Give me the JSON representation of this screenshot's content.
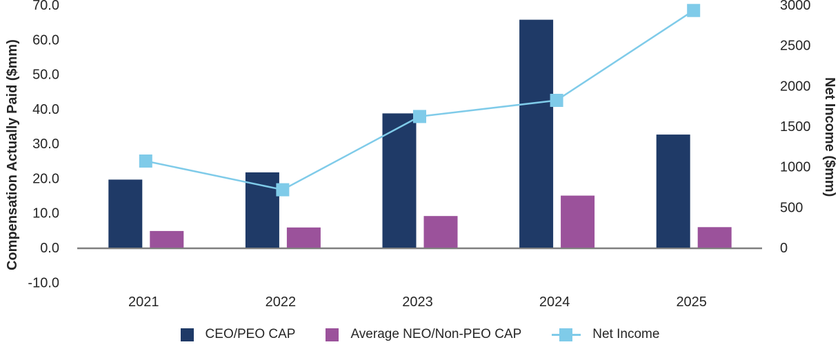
{
  "chart_data": {
    "type": "combo-bar-line",
    "categories": [
      "2021",
      "2022",
      "2023",
      "2024",
      "2025"
    ],
    "bar_series": [
      {
        "name": "CEO/PEO CAP",
        "color": "#1F3A67",
        "axis": "left",
        "values": [
          19.6,
          21.7,
          38.7,
          65.7,
          32.6
        ]
      },
      {
        "name": "Average NEO/Non-PEO CAP",
        "color": "#9B529B",
        "axis": "left",
        "values": [
          4.8,
          5.8,
          9.1,
          15.0,
          5.9
        ]
      }
    ],
    "line_series": {
      "name": "Net Income",
      "color": "#7FCBE9",
      "axis": "right",
      "marker": "square",
      "values": [
        1070,
        715,
        1620,
        1820,
        2930
      ]
    },
    "left_axis": {
      "title": "Compensation Actually Paid ($mm)",
      "min": -10,
      "max": 70,
      "tick_labels": [
        "70.0",
        "60.0",
        "50.0",
        "40.0",
        "30.0",
        "20.0",
        "10.0",
        "0.0",
        "-10.0"
      ],
      "tick_values": [
        70,
        60,
        50,
        40,
        30,
        20,
        10,
        0,
        -10
      ]
    },
    "right_axis": {
      "title": "Net Income ($mm)",
      "min": 0,
      "max": 3000,
      "tick_labels": [
        "3000",
        "2500",
        "2000",
        "1500",
        "1000",
        "500",
        "0"
      ],
      "tick_values": [
        3000,
        2500,
        2000,
        1500,
        1000,
        500,
        0
      ]
    },
    "legend": {
      "items": [
        "CEO/PEO CAP",
        "Average NEO/Non-PEO CAP",
        "Net Income"
      ]
    },
    "grid": false,
    "legend_position": "bottom",
    "axis_line_color": "#7F7F7F",
    "text_color": "#262626"
  }
}
